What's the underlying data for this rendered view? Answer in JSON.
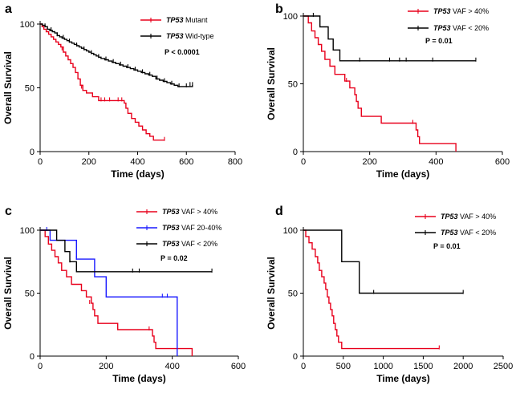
{
  "figure": {
    "ylabel": "Overall Survival",
    "xlabel": "Time (days)"
  },
  "chart_data": [
    {
      "id": "a",
      "panel_label": "a",
      "type": "line",
      "xlabel": "Time (days)",
      "ylabel": "Overall Survival",
      "xlim": [
        0,
        800
      ],
      "ylim": [
        0,
        100
      ],
      "xticks": [
        0,
        200,
        400,
        600,
        800
      ],
      "yticks": [
        0,
        50,
        100
      ],
      "xtick_labels": [
        "0",
        "200",
        "400",
        "600",
        "800"
      ],
      "ytick_labels": [
        "0",
        "50",
        "100"
      ],
      "pvalue": "P < 0.0001",
      "series": [
        {
          "name": "TP53 Mutant",
          "legend_italic": "TP53",
          "legend_rest": " Mutant",
          "color": "#e8001c",
          "steps": [
            [
              0,
              100
            ],
            [
              8,
              98
            ],
            [
              15,
              96
            ],
            [
              25,
              94
            ],
            [
              35,
              92
            ],
            [
              45,
              90
            ],
            [
              55,
              88
            ],
            [
              65,
              86
            ],
            [
              75,
              84
            ],
            [
              85,
              82
            ],
            [
              95,
              78
            ],
            [
              105,
              75
            ],
            [
              115,
              72
            ],
            [
              125,
              69
            ],
            [
              135,
              66
            ],
            [
              145,
              62
            ],
            [
              155,
              57
            ],
            [
              165,
              52
            ],
            [
              175,
              48
            ],
            [
              190,
              46
            ],
            [
              215,
              43
            ],
            [
              240,
              40
            ],
            [
              290,
              40
            ],
            [
              345,
              38
            ],
            [
              352,
              34
            ],
            [
              360,
              30
            ],
            [
              375,
              26
            ],
            [
              390,
              23
            ],
            [
              405,
              20
            ],
            [
              420,
              17
            ],
            [
              435,
              14
            ],
            [
              450,
              12
            ],
            [
              465,
              9
            ],
            [
              510,
              9
            ]
          ],
          "censors": [
            [
              90,
              80
            ],
            [
              170,
              50
            ],
            [
              250,
              40
            ],
            [
              265,
              40
            ],
            [
              285,
              40
            ],
            [
              320,
              40
            ],
            [
              335,
              40
            ],
            [
              510,
              9
            ]
          ]
        },
        {
          "name": "TP53 Wid-type",
          "legend_italic": "TP53",
          "legend_rest": " Wid-type",
          "color": "#000000",
          "steps": [
            [
              0,
              100
            ],
            [
              10,
              99
            ],
            [
              20,
              98
            ],
            [
              30,
              96
            ],
            [
              40,
              95
            ],
            [
              50,
              94
            ],
            [
              60,
              93
            ],
            [
              70,
              91
            ],
            [
              80,
              90
            ],
            [
              90,
              89
            ],
            [
              100,
              88
            ],
            [
              110,
              87
            ],
            [
              120,
              86
            ],
            [
              130,
              85
            ],
            [
              140,
              84
            ],
            [
              150,
              83
            ],
            [
              160,
              82
            ],
            [
              170,
              81
            ],
            [
              180,
              80
            ],
            [
              190,
              79
            ],
            [
              200,
              78
            ],
            [
              210,
              77
            ],
            [
              220,
              76
            ],
            [
              230,
              75
            ],
            [
              240,
              74
            ],
            [
              250,
              73
            ],
            [
              265,
              72
            ],
            [
              280,
              71
            ],
            [
              295,
              70
            ],
            [
              310,
              69
            ],
            [
              325,
              68
            ],
            [
              340,
              67
            ],
            [
              355,
              66
            ],
            [
              370,
              65
            ],
            [
              385,
              64
            ],
            [
              400,
              63
            ],
            [
              415,
              62
            ],
            [
              430,
              61
            ],
            [
              445,
              60
            ],
            [
              460,
              59
            ],
            [
              475,
              57
            ],
            [
              490,
              56
            ],
            [
              505,
              55
            ],
            [
              520,
              54
            ],
            [
              535,
              53
            ],
            [
              550,
              52
            ],
            [
              565,
              51
            ],
            [
              580,
              51
            ],
            [
              625,
              52
            ]
          ],
          "censors": [
            [
              20,
              98
            ],
            [
              45,
              95
            ],
            [
              70,
              91
            ],
            [
              95,
              89
            ],
            [
              120,
              86
            ],
            [
              150,
              83
            ],
            [
              180,
              80
            ],
            [
              210,
              77
            ],
            [
              240,
              74
            ],
            [
              270,
              72
            ],
            [
              300,
              70
            ],
            [
              330,
              68
            ],
            [
              360,
              66
            ],
            [
              390,
              64
            ],
            [
              420,
              62
            ],
            [
              450,
              60
            ],
            [
              480,
              57
            ],
            [
              510,
              55
            ],
            [
              540,
              53
            ],
            [
              570,
              51
            ],
            [
              600,
              51
            ],
            [
              615,
              52
            ],
            [
              625,
              52
            ]
          ]
        }
      ]
    },
    {
      "id": "b",
      "panel_label": "b",
      "type": "line",
      "xlabel": "Time (days)",
      "ylabel": "Overall Survival",
      "xlim": [
        0,
        600
      ],
      "ylim": [
        0,
        100
      ],
      "xticks": [
        0,
        200,
        400,
        600
      ],
      "yticks": [
        0,
        50,
        100
      ],
      "xtick_labels": [
        "0",
        "200",
        "400",
        "600"
      ],
      "ytick_labels": [
        "0",
        "50",
        "100"
      ],
      "pvalue": "P = 0.01",
      "series": [
        {
          "name": "TP53 VAF > 40%",
          "legend_italic": "TP53",
          "legend_rest": " VAF > 40%",
          "color": "#e8001c",
          "steps": [
            [
              0,
              100
            ],
            [
              15,
              95
            ],
            [
              25,
              89
            ],
            [
              35,
              84
            ],
            [
              45,
              79
            ],
            [
              55,
              74
            ],
            [
              65,
              68
            ],
            [
              80,
              63
            ],
            [
              95,
              57
            ],
            [
              125,
              52
            ],
            [
              140,
              47
            ],
            [
              155,
              42
            ],
            [
              160,
              37
            ],
            [
              165,
              32
            ],
            [
              175,
              26
            ],
            [
              235,
              21
            ],
            [
              330,
              21
            ],
            [
              340,
              16
            ],
            [
              345,
              11
            ],
            [
              350,
              6
            ],
            [
              460,
              0
            ]
          ],
          "censors": [
            [
              130,
              52
            ],
            [
              330,
              21
            ]
          ]
        },
        {
          "name": "TP53 VAF < 20%",
          "legend_italic": "TP53",
          "legend_rest": " VAF < 20%",
          "color": "#000000",
          "steps": [
            [
              0,
              100
            ],
            [
              50,
              92
            ],
            [
              75,
              83
            ],
            [
              90,
              75
            ],
            [
              110,
              67
            ],
            [
              520,
              67
            ]
          ],
          "censors": [
            [
              30,
              100
            ],
            [
              170,
              67
            ],
            [
              260,
              67
            ],
            [
              290,
              67
            ],
            [
              310,
              67
            ],
            [
              390,
              67
            ],
            [
              520,
              67
            ]
          ]
        }
      ]
    },
    {
      "id": "c",
      "panel_label": "c",
      "type": "line",
      "xlabel": "Time (days)",
      "ylabel": "Overall Survival",
      "xlim": [
        0,
        600
      ],
      "ylim": [
        0,
        100
      ],
      "xticks": [
        0,
        200,
        400,
        600
      ],
      "yticks": [
        0,
        50,
        100
      ],
      "xtick_labels": [
        "0",
        "200",
        "400",
        "600"
      ],
      "ytick_labels": [
        "0",
        "50",
        "100"
      ],
      "pvalue": "P = 0.02",
      "series": [
        {
          "name": "TP53 VAF > 40%",
          "legend_italic": "TP53",
          "legend_rest": " VAF > 40%",
          "color": "#e8001c",
          "steps": [
            [
              0,
              100
            ],
            [
              15,
              95
            ],
            [
              25,
              89
            ],
            [
              35,
              84
            ],
            [
              45,
              79
            ],
            [
              55,
              74
            ],
            [
              65,
              68
            ],
            [
              80,
              63
            ],
            [
              95,
              57
            ],
            [
              125,
              52
            ],
            [
              140,
              47
            ],
            [
              155,
              42
            ],
            [
              160,
              37
            ],
            [
              165,
              32
            ],
            [
              175,
              26
            ],
            [
              235,
              21
            ],
            [
              330,
              21
            ],
            [
              340,
              16
            ],
            [
              345,
              11
            ],
            [
              350,
              6
            ],
            [
              460,
              0
            ]
          ],
          "censors": [
            [
              150,
              42
            ],
            [
              330,
              21
            ]
          ]
        },
        {
          "name": "TP53 VAF 20-40%",
          "legend_italic": "TP53",
          "legend_rest": " VAF 20-40%",
          "color": "#1a1aff",
          "steps": [
            [
              0,
              100
            ],
            [
              30,
              92
            ],
            [
              110,
              77
            ],
            [
              165,
              63
            ],
            [
              200,
              47
            ],
            [
              415,
              0
            ]
          ],
          "censors": [
            [
              20,
              100
            ],
            [
              110,
              77
            ],
            [
              370,
              47
            ],
            [
              385,
              47
            ]
          ]
        },
        {
          "name": "TP53 VAF < 20%",
          "legend_italic": "TP53",
          "legend_rest": " VAF < 20%",
          "color": "#000000",
          "steps": [
            [
              0,
              100
            ],
            [
              50,
              92
            ],
            [
              75,
              83
            ],
            [
              90,
              75
            ],
            [
              110,
              67
            ],
            [
              520,
              67
            ]
          ],
          "censors": [
            [
              90,
              75
            ],
            [
              280,
              67
            ],
            [
              300,
              67
            ],
            [
              520,
              67
            ]
          ]
        }
      ]
    },
    {
      "id": "d",
      "panel_label": "d",
      "type": "line",
      "xlabel": "Time (days)",
      "ylabel": "Overall Survival",
      "xlim": [
        0,
        2500
      ],
      "ylim": [
        0,
        100
      ],
      "xticks": [
        0,
        500,
        1000,
        1500,
        2000,
        2500
      ],
      "yticks": [
        0,
        50,
        100
      ],
      "xtick_labels": [
        "0",
        "500",
        "1000",
        "1500",
        "2000",
        "2500"
      ],
      "ytick_labels": [
        "0",
        "50",
        "100"
      ],
      "pvalue": "P = 0.01",
      "series": [
        {
          "name": "TP53 VAF > 40%",
          "legend_italic": "TP53",
          "legend_rest": " VAF > 40%",
          "color": "#e8001c",
          "steps": [
            [
              0,
              100
            ],
            [
              30,
              95
            ],
            [
              70,
              90
            ],
            [
              110,
              85
            ],
            [
              150,
              79
            ],
            [
              180,
              74
            ],
            [
              200,
              68
            ],
            [
              230,
              63
            ],
            [
              260,
              58
            ],
            [
              280,
              53
            ],
            [
              300,
              47
            ],
            [
              320,
              42
            ],
            [
              340,
              37
            ],
            [
              360,
              32
            ],
            [
              380,
              26
            ],
            [
              400,
              21
            ],
            [
              420,
              16
            ],
            [
              440,
              11
            ],
            [
              480,
              6
            ],
            [
              1700,
              6
            ]
          ],
          "censors": [
            [
              1700,
              6
            ]
          ]
        },
        {
          "name": "TP53 VAF < 20%",
          "legend_italic": "TP53",
          "legend_rest": " VAF < 20%",
          "color": "#000000",
          "steps": [
            [
              0,
              100
            ],
            [
              480,
              75
            ],
            [
              700,
              50
            ],
            [
              2000,
              50
            ]
          ],
          "censors": [
            [
              880,
              50
            ],
            [
              2000,
              50
            ]
          ]
        }
      ]
    }
  ]
}
